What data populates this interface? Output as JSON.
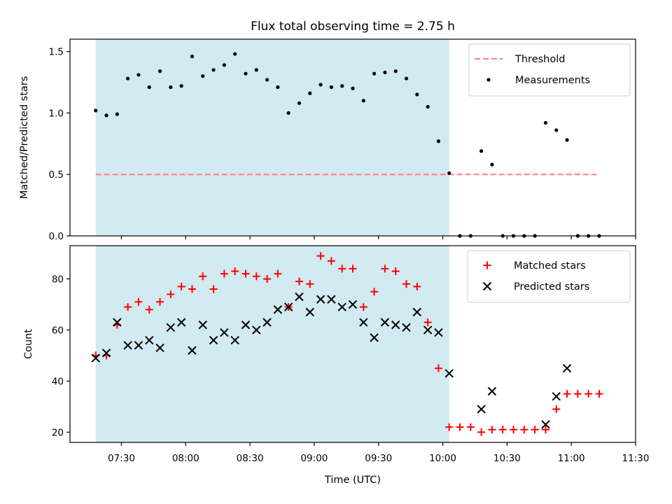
{
  "chart_data": {
    "title": "Flux total observing time = 2.75 h",
    "xlabel": "Time (UTC)",
    "x_unit": "minutes after 00:00 UTC",
    "xlim": [
      426,
      690
    ],
    "x_ticks": [
      {
        "value": 450,
        "label": "07:30"
      },
      {
        "value": 480,
        "label": "08:00"
      },
      {
        "value": 510,
        "label": "08:30"
      },
      {
        "value": 540,
        "label": "09:00"
      },
      {
        "value": 570,
        "label": "09:30"
      },
      {
        "value": 600,
        "label": "10:00"
      },
      {
        "value": 630,
        "label": "10:30"
      },
      {
        "value": 660,
        "label": "11:00"
      },
      {
        "value": 690,
        "label": "11:30"
      }
    ],
    "observing_window": {
      "start": 438,
      "end": 603,
      "color": "#add8e6"
    },
    "x": [
      438,
      443,
      448,
      453,
      458,
      463,
      468,
      473,
      478,
      483,
      488,
      493,
      498,
      503,
      508,
      513,
      518,
      523,
      528,
      533,
      538,
      543,
      548,
      553,
      558,
      563,
      568,
      573,
      578,
      583,
      588,
      593,
      598,
      603,
      608,
      613,
      618,
      623,
      628,
      633,
      638,
      643,
      648,
      653,
      658,
      663,
      668,
      673
    ],
    "panels": [
      {
        "type": "scatter",
        "ylabel": "Matched/Predicted stars",
        "ylim": [
          0,
          1.6
        ],
        "y_ticks": [
          0.0,
          0.5,
          1.0,
          1.5
        ],
        "y_tick_labels": [
          "0.0",
          "0.5",
          "1.0",
          "1.5"
        ],
        "legend_position": "upper right",
        "series": [
          {
            "name": "Threshold",
            "kind": "line",
            "style": "dashed",
            "color": "#ff7f7f",
            "x": [
              438,
              673
            ],
            "values": [
              0.5,
              0.5
            ]
          },
          {
            "name": "Measurements",
            "kind": "scatter",
            "marker": "dot",
            "color": "#000000",
            "values": [
              1.02,
              0.98,
              0.99,
              1.28,
              1.31,
              1.21,
              1.34,
              1.21,
              1.22,
              1.46,
              1.3,
              1.35,
              1.39,
              1.48,
              1.32,
              1.35,
              1.27,
              1.21,
              1.0,
              1.08,
              1.16,
              1.23,
              1.21,
              1.22,
              1.2,
              1.1,
              1.32,
              1.33,
              1.34,
              1.28,
              1.15,
              1.05,
              0.77,
              0.51,
              0.0,
              0.0,
              0.69,
              0.58,
              0.0,
              0.0,
              0.0,
              0.0,
              0.92,
              0.86,
              0.78,
              0.0,
              0.0,
              0.0
            ]
          }
        ]
      },
      {
        "type": "scatter",
        "ylabel": "Count",
        "ylim": [
          16,
          93
        ],
        "y_ticks": [
          20,
          40,
          60,
          80
        ],
        "y_tick_labels": [
          "20",
          "40",
          "60",
          "80"
        ],
        "legend_position": "upper right",
        "series": [
          {
            "name": "Matched stars",
            "kind": "scatter",
            "marker": "plus",
            "color": "#ff0000",
            "values": [
              50,
              50,
              62,
              69,
              71,
              68,
              71,
              74,
              77,
              76,
              81,
              76,
              82,
              83,
              82,
              81,
              80,
              82,
              69,
              79,
              78,
              89,
              87,
              84,
              84,
              69,
              75,
              84,
              83,
              78,
              77,
              63,
              45,
              22,
              22,
              22,
              20,
              21,
              21,
              21,
              21,
              21,
              21,
              29,
              35,
              35,
              35,
              35
            ]
          },
          {
            "name": "Predicted stars",
            "kind": "scatter",
            "marker": "x",
            "color": "#000000",
            "values": [
              49,
              51,
              63,
              54,
              54,
              56,
              53,
              61,
              63,
              52,
              62,
              56,
              59,
              56,
              62,
              60,
              63,
              68,
              69,
              73,
              67,
              72,
              72,
              69,
              70,
              63,
              57,
              63,
              62,
              61,
              67,
              60,
              59,
              43,
              null,
              null,
              29,
              36,
              null,
              null,
              null,
              null,
              23,
              34,
              45,
              null,
              null,
              null
            ]
          }
        ]
      }
    ]
  }
}
